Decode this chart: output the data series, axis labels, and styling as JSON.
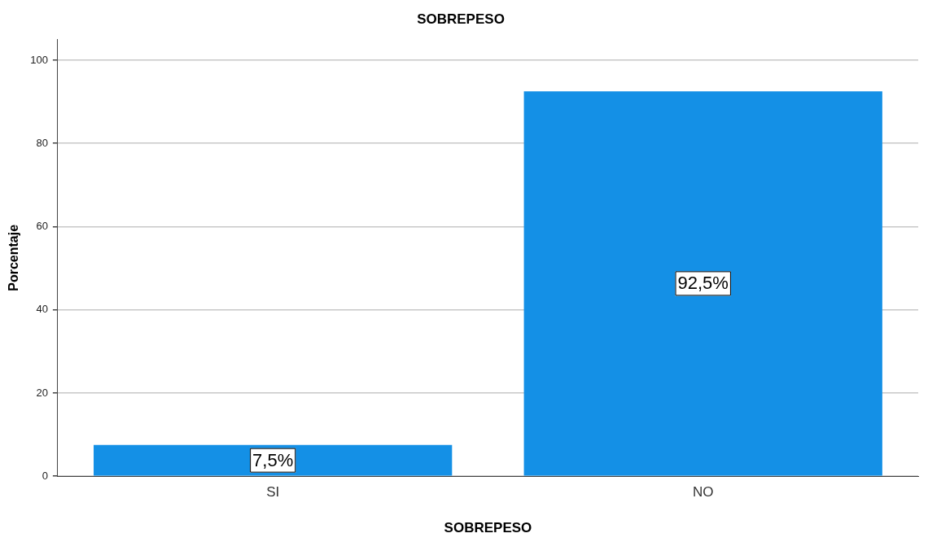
{
  "chart_data": {
    "type": "bar",
    "title": "SOBREPESO",
    "xlabel": "SOBREPESO",
    "ylabel": "Porcentaje",
    "categories": [
      "SI",
      "NO"
    ],
    "values": [
      7.5,
      92.5
    ],
    "value_labels": [
      "7,5%",
      "92,5%"
    ],
    "color": "#1490e6",
    "ylim": [
      0,
      105
    ],
    "yticks": [
      0,
      20,
      40,
      60,
      80,
      100
    ],
    "grid": "y",
    "legend": false
  }
}
